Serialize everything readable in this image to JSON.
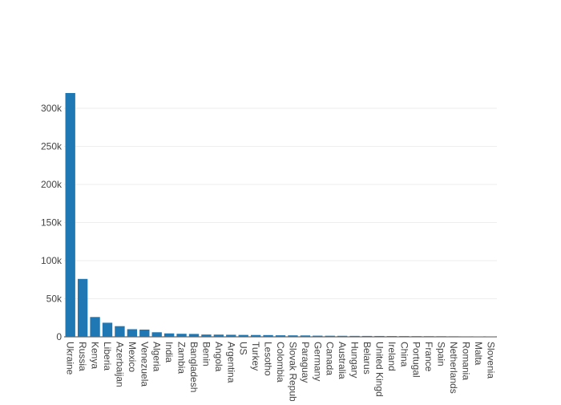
{
  "chart_data": {
    "type": "bar",
    "title": "",
    "xlabel": "",
    "ylabel": "",
    "ylim": [
      0,
      320000
    ],
    "y_ticks": [
      0,
      50000,
      100000,
      150000,
      200000,
      250000,
      300000
    ],
    "y_tick_labels": [
      "0",
      "50k",
      "100k",
      "150k",
      "200k",
      "250k",
      "300k"
    ],
    "grid": true,
    "bar_color": "#1f77b4",
    "categories": [
      "Ukraine",
      "Russia",
      "Kenya",
      "Liberia",
      "Azerbaijan",
      "Mexico",
      "Venezuela",
      "Algeria",
      "India",
      "Zambia",
      "Bangladesh",
      "Benin",
      "Angola",
      "Argentina",
      "US",
      "Turkey",
      "Lesotho",
      "Colombia",
      "Slovak Repub",
      "Paraguay",
      "Germany",
      "Canada",
      "Australia",
      "Hungary",
      "Belarus",
      "United Kingd",
      "Ireland",
      "China",
      "Portugal",
      "France",
      "Spain",
      "Netherlands",
      "Romania",
      "Malta",
      "Slovenia"
    ],
    "values": [
      320000,
      76000,
      26000,
      18500,
      14000,
      10000,
      9500,
      6000,
      4500,
      4000,
      3800,
      3000,
      2900,
      2700,
      2500,
      2400,
      2300,
      2000,
      1900,
      1800,
      1500,
      1400,
      1300,
      1200,
      1150,
      1100,
      1000,
      950,
      900,
      850,
      800,
      700,
      600,
      500,
      450
    ]
  }
}
